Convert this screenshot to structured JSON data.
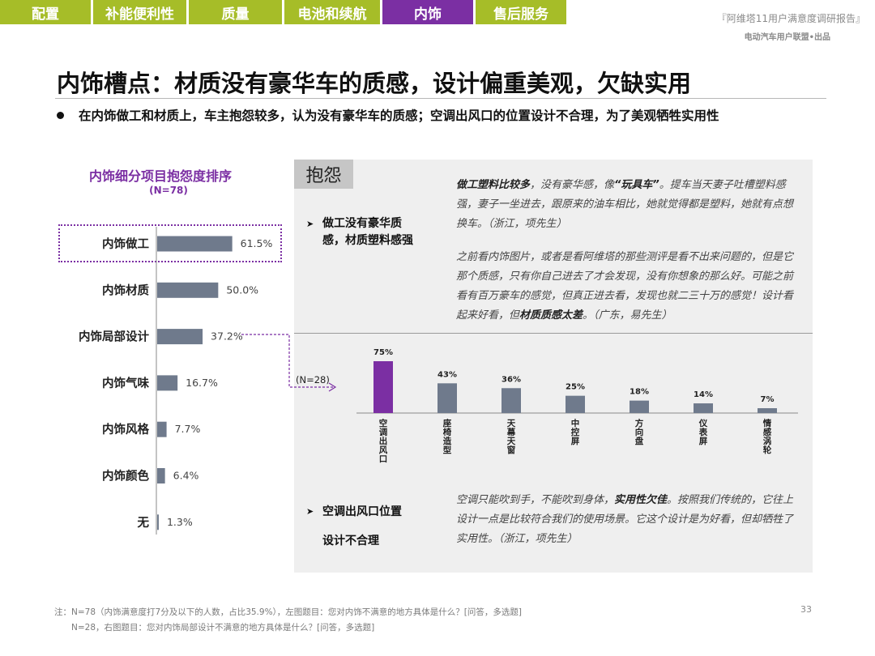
{
  "nav": {
    "tabs": [
      {
        "label": "配置",
        "active": false
      },
      {
        "label": "补能便利性",
        "active": false
      },
      {
        "label": "质量",
        "active": false
      },
      {
        "label": "电池和续航",
        "active": false
      },
      {
        "label": "内饰",
        "active": true
      },
      {
        "label": "售后服务",
        "active": false
      }
    ]
  },
  "header": {
    "report_title": "『阿维塔11用户满意度调研报告』",
    "report_sub": "电动汽车用户联盟•出品"
  },
  "page": {
    "title": "内饰槽点：材质没有豪华车的质感，设计偏重美观，欠缺实用",
    "bullet": "在内饰做工和材质上，车主抱怨较多，认为没有豪华车的质感；空调出风口的位置设计不合理，为了美观牺牲实用性"
  },
  "panel": {
    "tab_label": "抱怨",
    "issue1": "做工没有豪华质感，材质塑料感强",
    "quote1": {
      "bold": "做工塑料比较多",
      "text1": "，没有豪华感，像",
      "bold2": "“玩具车”",
      "text2": "。提车当天妻子吐槽塑料感强，妻子一坐进去，跟原来的油车相比，她就觉得都是塑料，她就有点想换车。（浙江，项先生）"
    },
    "quote2": {
      "text1": "之前看内饰图片，或者是看阿维塔的那些测评是看不出来问题的，但是它那个质感，只有你自己进去了才会发现，没有你想象的那么好。可能之前看有百万豪车的感觉，但真正进去看，发现也就二三十万的感觉！设计看起来好看，但",
      "bold": "材质质感太差",
      "text2": "。（广东，易先生）"
    },
    "issue2_line1": "空调出风口位置",
    "issue2_line2": "设计不合理",
    "quote3": {
      "text1": "空调只能吹到手，不能吹到身体，",
      "bold": "实用性欠佳",
      "text2": "。按照我们传统的，它往上设计一点是比较符合我们的使用场景。它这个设计是为好看，但却牺牲了实用性。（浙江，项先生）"
    }
  },
  "footnotes": {
    "line1": "注：N=78（内饰满意度打7分及以下的人数，占比35.9%），左图题目：您对内饰不满意的地方具体是什么？[问答，多选题]",
    "line2": "N=28，右图题目：您对内饰局部设计不满意的地方具体是什么？[问答，多选题]"
  },
  "page_number": "33",
  "colors": {
    "accent": "#7b2fa3",
    "nav_green": "#a6bd28",
    "bar_gray": "#6f7a8c"
  },
  "chart_data": [
    {
      "type": "bar",
      "orientation": "horizontal",
      "title": "内饰细分项目抱怨度排序",
      "subtitle": "(N=78)",
      "categories": [
        "内饰做工",
        "内饰材质",
        "内饰局部设计",
        "内饰气味",
        "内饰风格",
        "内饰颜色",
        "无"
      ],
      "values": [
        61.5,
        50.0,
        37.2,
        16.7,
        7.7,
        6.4,
        1.3
      ],
      "value_labels": [
        "61.5%",
        "50.0%",
        "37.2%",
        "16.7%",
        "7.7%",
        "6.4%",
        "1.3%"
      ],
      "highlighted": "内饰做工"
    },
    {
      "type": "bar",
      "orientation": "vertical",
      "sample_label": "(N=28)",
      "categories": [
        "空调出风口",
        "座椅造型",
        "天幕天窗",
        "中控屏",
        "方向盘",
        "仪表屏",
        "情感涡轮"
      ],
      "values": [
        75,
        43,
        36,
        25,
        18,
        14,
        7
      ],
      "value_labels": [
        "75%",
        "43%",
        "36%",
        "25%",
        "18%",
        "14%",
        "7%"
      ],
      "highlighted": "空调出风口"
    }
  ]
}
